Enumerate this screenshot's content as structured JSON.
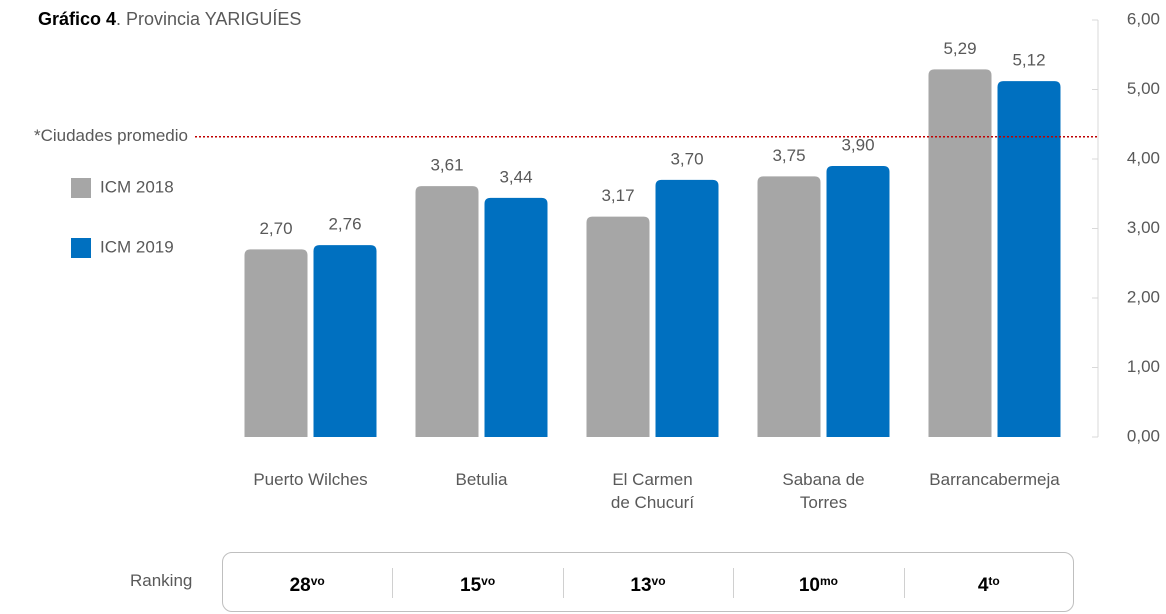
{
  "chart_data": {
    "type": "bar",
    "title": "Gráfico 4",
    "subtitle": ". Provincia YARIGUÍES",
    "categories": [
      "Puerto Wilches",
      "Betulia",
      "El Carmen\nde Chucurí",
      "Sabana de\nTorres",
      "Barrancabermeja"
    ],
    "series": [
      {
        "name": "ICM 2018",
        "color": "#a6a6a6",
        "values": [
          2.7,
          3.61,
          3.17,
          3.75,
          5.29
        ],
        "value_labels": [
          "2,70",
          "3,61",
          "3,17",
          "3,75",
          "5,29"
        ]
      },
      {
        "name": "ICM 2019",
        "color": "#0070c0",
        "values": [
          2.76,
          3.44,
          3.7,
          3.9,
          5.12
        ],
        "value_labels": [
          "2,76",
          "3,44",
          "3,70",
          "3,90",
          "5,12"
        ]
      }
    ],
    "ylim": [
      0,
      6
    ],
    "yticks": [
      {
        "value": 0,
        "label": "0,00"
      },
      {
        "value": 1,
        "label": "1,00"
      },
      {
        "value": 2,
        "label": "2,00"
      },
      {
        "value": 3,
        "label": "3,00"
      },
      {
        "value": 4,
        "label": "4,00"
      },
      {
        "value": 5,
        "label": "5,00"
      },
      {
        "value": 6,
        "label": "6,00"
      }
    ],
    "reference_line": {
      "label": "*Ciudades promedio",
      "value": 4.32,
      "color": "#c00000"
    },
    "legend": "left",
    "ranking": {
      "label": "Ranking",
      "items": [
        {
          "rank": "28",
          "suffix": "vo"
        },
        {
          "rank": "15",
          "suffix": "vo"
        },
        {
          "rank": "13",
          "suffix": "vo"
        },
        {
          "rank": "10",
          "suffix": "mo"
        },
        {
          "rank": "4",
          "suffix": "to"
        }
      ]
    }
  }
}
